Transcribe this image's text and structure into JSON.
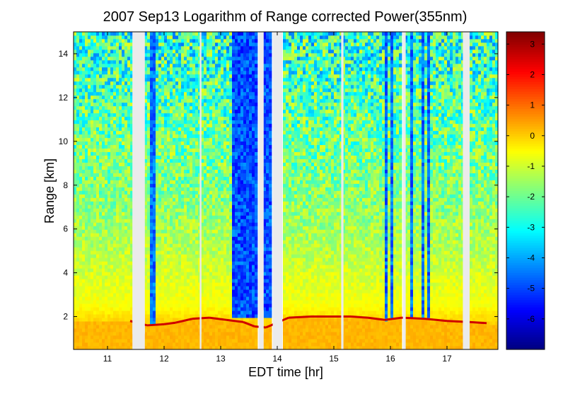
{
  "chart_data": {
    "type": "heatmap",
    "title": "2007 Sep13  Logarithm of Range corrected Power(355nm)",
    "xlabel": "EDT time [hr]",
    "ylabel": "Range [km]",
    "xlim": [
      10.4,
      17.9
    ],
    "ylim": [
      0.5,
      15
    ],
    "xticks": [
      11,
      12,
      13,
      14,
      15,
      16,
      17
    ],
    "yticks": [
      2,
      4,
      6,
      8,
      10,
      12,
      14
    ],
    "colorbar": {
      "range": [
        -7,
        3.4
      ],
      "ticks": [
        3,
        2,
        1,
        0,
        -1,
        -2,
        -3,
        -4,
        -5,
        -6
      ],
      "colormap": "jet"
    },
    "data_gaps_hr": [
      [
        11.44,
        11.66
      ],
      [
        12.63,
        12.66
      ],
      [
        13.67,
        13.76
      ],
      [
        13.92,
        14.09
      ],
      [
        15.13,
        15.17
      ],
      [
        16.22,
        16.27
      ],
      [
        17.28,
        17.4
      ]
    ],
    "dense_profiles_hr": [
      11.78,
      11.84,
      12.3,
      12.5,
      12.95,
      14.4,
      14.65,
      14.85,
      15.45,
      15.6,
      15.75,
      15.92,
      16.04,
      16.38,
      16.5,
      16.56,
      16.68,
      17.6,
      17.7
    ],
    "cloud_layer_km": [
      {
        "x": 11.4,
        "y": 1.8
      },
      {
        "x": 11.7,
        "y": 1.6
      },
      {
        "x": 12.0,
        "y": 1.65
      },
      {
        "x": 12.2,
        "y": 1.72
      },
      {
        "x": 12.5,
        "y": 1.9
      },
      {
        "x": 12.8,
        "y": 1.95
      },
      {
        "x": 13.1,
        "y": 1.85
      },
      {
        "x": 13.4,
        "y": 1.75
      },
      {
        "x": 13.6,
        "y": 1.55
      },
      {
        "x": 13.8,
        "y": 1.5
      },
      {
        "x": 14.2,
        "y": 1.95
      },
      {
        "x": 14.6,
        "y": 2.0
      },
      {
        "x": 15.0,
        "y": 2.0
      },
      {
        "x": 15.3,
        "y": 2.0
      },
      {
        "x": 15.6,
        "y": 1.95
      },
      {
        "x": 15.9,
        "y": 1.85
      },
      {
        "x": 16.2,
        "y": 1.95
      },
      {
        "x": 16.6,
        "y": 1.9
      },
      {
        "x": 17.0,
        "y": 1.8
      },
      {
        "x": 17.4,
        "y": 1.75
      },
      {
        "x": 17.7,
        "y": 1.7
      }
    ],
    "background_profile_by_range_km": [
      {
        "y": 0.5,
        "v": 0.25
      },
      {
        "y": 1.5,
        "v": 0.15
      },
      {
        "y": 2.5,
        "v": -0.55
      },
      {
        "y": 4.0,
        "v": -0.95
      },
      {
        "y": 6.0,
        "v": -1.45
      },
      {
        "y": 8.0,
        "v": -1.8
      },
      {
        "y": 10.0,
        "v": -2.0
      },
      {
        "y": 12.0,
        "v": -2.3
      },
      {
        "y": 14.0,
        "v": -2.6
      },
      {
        "y": 15.0,
        "v": -2.8
      }
    ],
    "deep_blue_region": {
      "x": [
        13.2,
        13.9
      ],
      "y": [
        2.0,
        15.0
      ],
      "v": -4.9
    }
  }
}
